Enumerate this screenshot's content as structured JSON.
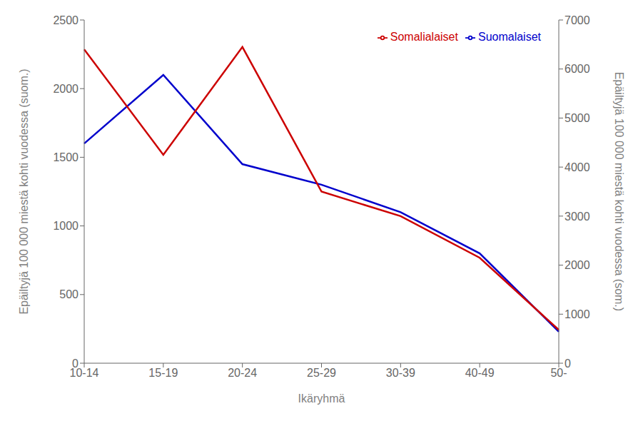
{
  "chart_data": {
    "type": "line",
    "xlabel": "Ikäryhmä",
    "ylabel": "Epäiltyjä 100 000 miestä kohti vuodessa (suom.)",
    "y2label": "Epäiltyjä 100 000 miestä kohti vuodessa (som.)",
    "categories": [
      "10-14",
      "15-19",
      "20-24",
      "25-29",
      "30-39",
      "40-49",
      "50-"
    ],
    "series": [
      {
        "name": "Suomalaiset",
        "color": "#0000CC",
        "values": [
          1600,
          2100,
          1450,
          1300,
          1100,
          800,
          230
        ]
      },
      {
        "name": "Somalialaiset",
        "color": "#CC0000",
        "values": [
          6400,
          4250,
          6450,
          3500,
          3000,
          2150,
          680
        ],
        "axis": "y2"
      }
    ],
    "ylim": [
      0,
      2500
    ],
    "yticks": [
      0,
      500,
      1000,
      1500,
      2000,
      2500
    ],
    "y2lim": [
      0,
      7000
    ],
    "y2ticks": [
      0,
      1000,
      2000,
      3000,
      4000,
      5000,
      6000,
      7000
    ],
    "grid": false,
    "legend": "upper right"
  }
}
